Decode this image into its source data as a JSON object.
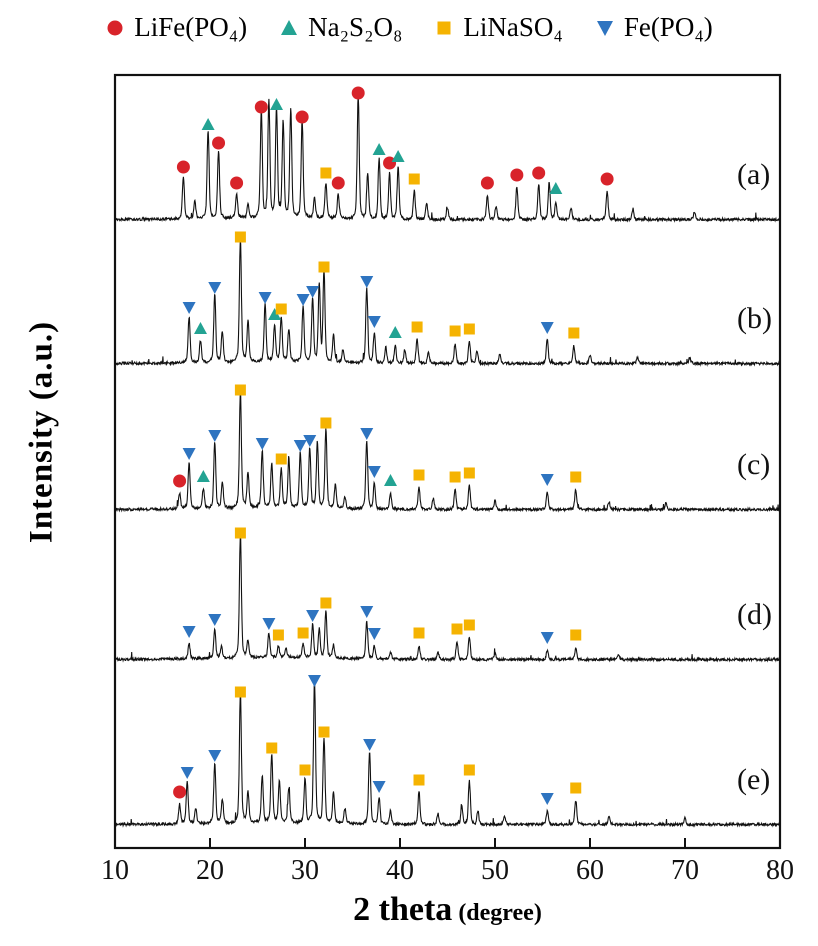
{
  "figure": {
    "background": "#ffffff",
    "line_color": "#111111",
    "frame_color": "#111111"
  },
  "legend": {
    "items": [
      {
        "label": "LiFe(PO₄)",
        "phase": "LiFe(PO4)",
        "marker": "circle",
        "color": "#d8232a"
      },
      {
        "label": "Na₂S₂O₈",
        "phase": "Na2S2O8",
        "marker": "triangle-up",
        "color": "#23a393"
      },
      {
        "label": "LiNaSO₄",
        "phase": "LiNaSO4",
        "marker": "square",
        "color": "#f5b301"
      },
      {
        "label": "Fe(PO₄)",
        "phase": "Fe(PO4)",
        "marker": "triangle-down",
        "color": "#2e74c0"
      }
    ]
  },
  "chart_data": {
    "type": "line",
    "title": "",
    "xlabel": "2 theta",
    "xlabel_unit": "(degree)",
    "ylabel": "Intensity (a.u.)",
    "xlim": [
      10,
      80
    ],
    "x_ticks": [
      10,
      20,
      30,
      40,
      50,
      60,
      70,
      80
    ],
    "grid": false,
    "legend_position": "top",
    "line_color": "#111111",
    "y_axis_note": "stacked XRD patterns, arbitrary units, no y ticks",
    "series": [
      {
        "label": "(a)",
        "baseline": 222,
        "peaks": [
          [
            17.2,
            38
          ],
          [
            18.4,
            16
          ],
          [
            19.8,
            80
          ],
          [
            20.9,
            62
          ],
          [
            22.8,
            22
          ],
          [
            24.0,
            12
          ],
          [
            25.4,
            98
          ],
          [
            26.2,
            108
          ],
          [
            27.0,
            100
          ],
          [
            27.7,
            88
          ],
          [
            28.5,
            100
          ],
          [
            29.7,
            88
          ],
          [
            31.0,
            18
          ],
          [
            32.2,
            32
          ],
          [
            33.5,
            22
          ],
          [
            35.6,
            112
          ],
          [
            36.6,
            42
          ],
          [
            37.8,
            55
          ],
          [
            38.9,
            42
          ],
          [
            39.8,
            48
          ],
          [
            41.5,
            26
          ],
          [
            42.8,
            15
          ],
          [
            45.0,
            10
          ],
          [
            49.2,
            22
          ],
          [
            50.1,
            12
          ],
          [
            52.3,
            30
          ],
          [
            54.6,
            32
          ],
          [
            55.7,
            34
          ],
          [
            56.4,
            16
          ],
          [
            58.0,
            10
          ],
          [
            61.8,
            26
          ],
          [
            64.5,
            9
          ],
          [
            71.0,
            7
          ]
        ],
        "markers": [
          {
            "t": 17.2,
            "k": "circle"
          },
          {
            "t": 20.9,
            "k": "circle"
          },
          {
            "t": 22.8,
            "k": "circle"
          },
          {
            "t": 25.4,
            "k": "circle"
          },
          {
            "t": 29.7,
            "k": "circle"
          },
          {
            "t": 33.5,
            "k": "circle"
          },
          {
            "t": 35.6,
            "k": "circle"
          },
          {
            "t": 38.9,
            "k": "circle"
          },
          {
            "t": 49.2,
            "k": "circle"
          },
          {
            "t": 52.3,
            "k": "circle"
          },
          {
            "t": 54.6,
            "k": "circle"
          },
          {
            "t": 61.8,
            "k": "circle"
          },
          {
            "t": 19.8,
            "k": "triangle-up"
          },
          {
            "t": 27.0,
            "k": "triangle-up"
          },
          {
            "t": 37.8,
            "k": "triangle-up"
          },
          {
            "t": 39.8,
            "k": "triangle-up"
          },
          {
            "t": 56.4,
            "k": "triangle-up"
          },
          {
            "t": 32.2,
            "k": "square"
          },
          {
            "t": 41.5,
            "k": "square"
          }
        ]
      },
      {
        "label": "(b)",
        "baseline": 366,
        "peaks": [
          [
            17.8,
            42
          ],
          [
            19.0,
            20
          ],
          [
            20.5,
            62
          ],
          [
            21.3,
            28
          ],
          [
            23.2,
            112
          ],
          [
            24.0,
            38
          ],
          [
            25.8,
            52
          ],
          [
            26.8,
            34
          ],
          [
            27.5,
            40
          ],
          [
            28.3,
            30
          ],
          [
            29.8,
            50
          ],
          [
            30.8,
            58
          ],
          [
            31.5,
            70
          ],
          [
            32.0,
            82
          ],
          [
            33.0,
            25
          ],
          [
            34.0,
            12
          ],
          [
            36.5,
            68
          ],
          [
            37.3,
            28
          ],
          [
            38.5,
            15
          ],
          [
            39.5,
            16
          ],
          [
            40.5,
            12
          ],
          [
            41.8,
            22
          ],
          [
            43.0,
            10
          ],
          [
            45.8,
            18
          ],
          [
            47.3,
            20
          ],
          [
            48.1,
            12
          ],
          [
            50.5,
            8
          ],
          [
            55.5,
            22
          ],
          [
            58.3,
            16
          ],
          [
            60.0,
            8
          ],
          [
            65.0,
            6
          ],
          [
            70.5,
            5
          ]
        ],
        "markers": [
          {
            "t": 17.8,
            "k": "triangle-down"
          },
          {
            "t": 20.5,
            "k": "triangle-down"
          },
          {
            "t": 25.8,
            "k": "triangle-down"
          },
          {
            "t": 29.8,
            "k": "triangle-down"
          },
          {
            "t": 30.8,
            "k": "triangle-down"
          },
          {
            "t": 36.5,
            "k": "triangle-down"
          },
          {
            "t": 37.3,
            "k": "triangle-down"
          },
          {
            "t": 55.5,
            "k": "triangle-down"
          },
          {
            "t": 19.0,
            "k": "triangle-up"
          },
          {
            "t": 26.8,
            "k": "triangle-up"
          },
          {
            "t": 39.5,
            "k": "triangle-up"
          },
          {
            "t": 23.2,
            "k": "square"
          },
          {
            "t": 27.5,
            "k": "square"
          },
          {
            "t": 32.0,
            "k": "square"
          },
          {
            "t": 41.8,
            "k": "square"
          },
          {
            "t": 45.8,
            "k": "square"
          },
          {
            "t": 47.3,
            "k": "square"
          },
          {
            "t": 58.3,
            "k": "square"
          }
        ]
      },
      {
        "label": "(c)",
        "baseline": 512,
        "peaks": [
          [
            16.8,
            14
          ],
          [
            17.8,
            42
          ],
          [
            19.3,
            18
          ],
          [
            20.5,
            60
          ],
          [
            21.3,
            24
          ],
          [
            23.2,
            105
          ],
          [
            24.0,
            32
          ],
          [
            25.5,
            52
          ],
          [
            26.5,
            40
          ],
          [
            27.5,
            36
          ],
          [
            28.3,
            44
          ],
          [
            29.5,
            50
          ],
          [
            30.5,
            55
          ],
          [
            31.3,
            60
          ],
          [
            32.2,
            72
          ],
          [
            33.2,
            22
          ],
          [
            34.2,
            10
          ],
          [
            36.5,
            62
          ],
          [
            37.3,
            24
          ],
          [
            39.0,
            14
          ],
          [
            42.0,
            20
          ],
          [
            43.5,
            10
          ],
          [
            45.8,
            18
          ],
          [
            47.3,
            22
          ],
          [
            50.0,
            8
          ],
          [
            55.5,
            16
          ],
          [
            58.5,
            18
          ],
          [
            62.0,
            7
          ],
          [
            68.0,
            6
          ]
        ],
        "markers": [
          {
            "t": 16.8,
            "k": "circle"
          },
          {
            "t": 17.8,
            "k": "triangle-down"
          },
          {
            "t": 20.5,
            "k": "triangle-down"
          },
          {
            "t": 25.5,
            "k": "triangle-down"
          },
          {
            "t": 29.5,
            "k": "triangle-down"
          },
          {
            "t": 30.5,
            "k": "triangle-down"
          },
          {
            "t": 36.5,
            "k": "triangle-down"
          },
          {
            "t": 37.3,
            "k": "triangle-down"
          },
          {
            "t": 55.5,
            "k": "triangle-down"
          },
          {
            "t": 19.3,
            "k": "triangle-up"
          },
          {
            "t": 39.0,
            "k": "triangle-up"
          },
          {
            "t": 23.2,
            "k": "square"
          },
          {
            "t": 27.5,
            "k": "square"
          },
          {
            "t": 32.2,
            "k": "square"
          },
          {
            "t": 42.0,
            "k": "square"
          },
          {
            "t": 45.8,
            "k": "square"
          },
          {
            "t": 47.3,
            "k": "square"
          },
          {
            "t": 58.5,
            "k": "square"
          }
        ]
      },
      {
        "label": "(d)",
        "baseline": 662,
        "peaks": [
          [
            17.8,
            14
          ],
          [
            20.5,
            26
          ],
          [
            21.2,
            10
          ],
          [
            23.2,
            112
          ],
          [
            24.0,
            16
          ],
          [
            26.2,
            22
          ],
          [
            27.2,
            10
          ],
          [
            28.0,
            8
          ],
          [
            29.8,
            12
          ],
          [
            30.8,
            30
          ],
          [
            31.5,
            26
          ],
          [
            32.2,
            42
          ],
          [
            33.0,
            12
          ],
          [
            36.5,
            34
          ],
          [
            37.3,
            12
          ],
          [
            39.0,
            6
          ],
          [
            42.0,
            12
          ],
          [
            44.0,
            6
          ],
          [
            46.0,
            16
          ],
          [
            47.3,
            20
          ],
          [
            50.0,
            5
          ],
          [
            55.5,
            8
          ],
          [
            58.5,
            10
          ],
          [
            63.0,
            4
          ]
        ],
        "markers": [
          {
            "t": 17.8,
            "k": "triangle-down"
          },
          {
            "t": 20.5,
            "k": "triangle-down"
          },
          {
            "t": 26.2,
            "k": "triangle-down"
          },
          {
            "t": 30.8,
            "k": "triangle-down"
          },
          {
            "t": 36.5,
            "k": "triangle-down"
          },
          {
            "t": 37.3,
            "k": "triangle-down"
          },
          {
            "t": 55.5,
            "k": "triangle-down"
          },
          {
            "t": 23.2,
            "k": "square"
          },
          {
            "t": 27.2,
            "k": "square"
          },
          {
            "t": 29.8,
            "k": "square"
          },
          {
            "t": 32.2,
            "k": "square"
          },
          {
            "t": 42.0,
            "k": "square"
          },
          {
            "t": 46.0,
            "k": "square"
          },
          {
            "t": 47.3,
            "k": "square"
          },
          {
            "t": 58.5,
            "k": "square"
          }
        ]
      },
      {
        "label": "(e)",
        "baseline": 827,
        "peaks": [
          [
            16.8,
            18
          ],
          [
            17.6,
            38
          ],
          [
            18.5,
            14
          ],
          [
            20.5,
            55
          ],
          [
            21.3,
            22
          ],
          [
            23.2,
            118
          ],
          [
            24.0,
            28
          ],
          [
            25.5,
            42
          ],
          [
            26.5,
            62
          ],
          [
            27.3,
            38
          ],
          [
            28.3,
            32
          ],
          [
            30.0,
            40
          ],
          [
            31.0,
            130
          ],
          [
            32.0,
            78
          ],
          [
            33.0,
            28
          ],
          [
            34.2,
            14
          ],
          [
            36.8,
            66
          ],
          [
            37.8,
            24
          ],
          [
            39.0,
            12
          ],
          [
            42.0,
            30
          ],
          [
            44.0,
            10
          ],
          [
            46.5,
            16
          ],
          [
            47.3,
            40
          ],
          [
            48.2,
            12
          ],
          [
            51.0,
            8
          ],
          [
            55.5,
            12
          ],
          [
            58.5,
            22
          ],
          [
            62.0,
            7
          ],
          [
            70.0,
            6
          ]
        ],
        "markers": [
          {
            "t": 16.8,
            "k": "circle"
          },
          {
            "t": 17.6,
            "k": "triangle-down"
          },
          {
            "t": 20.5,
            "k": "triangle-down"
          },
          {
            "t": 31.0,
            "k": "triangle-down"
          },
          {
            "t": 36.8,
            "k": "triangle-down"
          },
          {
            "t": 37.8,
            "k": "triangle-down"
          },
          {
            "t": 55.5,
            "k": "triangle-down"
          },
          {
            "t": 23.2,
            "k": "square"
          },
          {
            "t": 26.5,
            "k": "square"
          },
          {
            "t": 30.0,
            "k": "square"
          },
          {
            "t": 32.0,
            "k": "square"
          },
          {
            "t": 42.0,
            "k": "square"
          },
          {
            "t": 47.3,
            "k": "square"
          },
          {
            "t": 58.5,
            "k": "square"
          }
        ]
      }
    ]
  }
}
